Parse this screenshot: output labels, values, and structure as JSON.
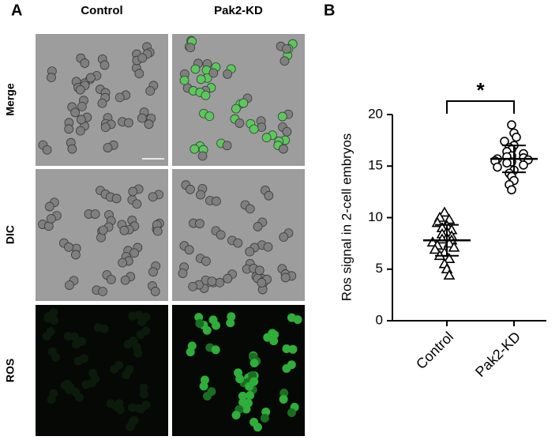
{
  "panel_a": {
    "label": "A",
    "columns": [
      "Control",
      "Pak2-KD"
    ],
    "rows": [
      "Merge",
      "DIC",
      "ROS"
    ]
  },
  "chart_data": {
    "type": "strip",
    "panel_label": "B",
    "y_label": "Ros signal in 2-cell embryos",
    "ylim": [
      0,
      20
    ],
    "yticks": [
      0,
      5,
      10,
      15,
      20
    ],
    "significance": "*",
    "groups": [
      {
        "name": "Control",
        "marker": "triangle",
        "color": "#000000",
        "values": [
          10.5,
          10.0,
          9.8,
          9.5,
          9.2,
          9.0,
          8.8,
          8.6,
          8.4,
          8.2,
          8.0,
          7.9,
          7.8,
          7.6,
          7.5,
          7.3,
          7.1,
          6.9,
          6.6,
          6.3,
          6.0,
          5.5,
          5.0,
          4.4
        ],
        "mean": 7.8,
        "sd": 1.5
      },
      {
        "name": "Pak2-KD",
        "marker": "circle",
        "color": "#000000",
        "values": [
          19.0,
          18.2,
          17.8,
          17.4,
          17.0,
          16.8,
          16.6,
          16.4,
          16.2,
          16.0,
          15.9,
          15.8,
          15.7,
          15.6,
          15.5,
          15.4,
          15.3,
          15.1,
          14.9,
          14.6,
          14.3,
          14.0,
          13.6,
          13.2,
          12.7
        ],
        "mean": 15.7,
        "sd": 1.3
      }
    ]
  }
}
